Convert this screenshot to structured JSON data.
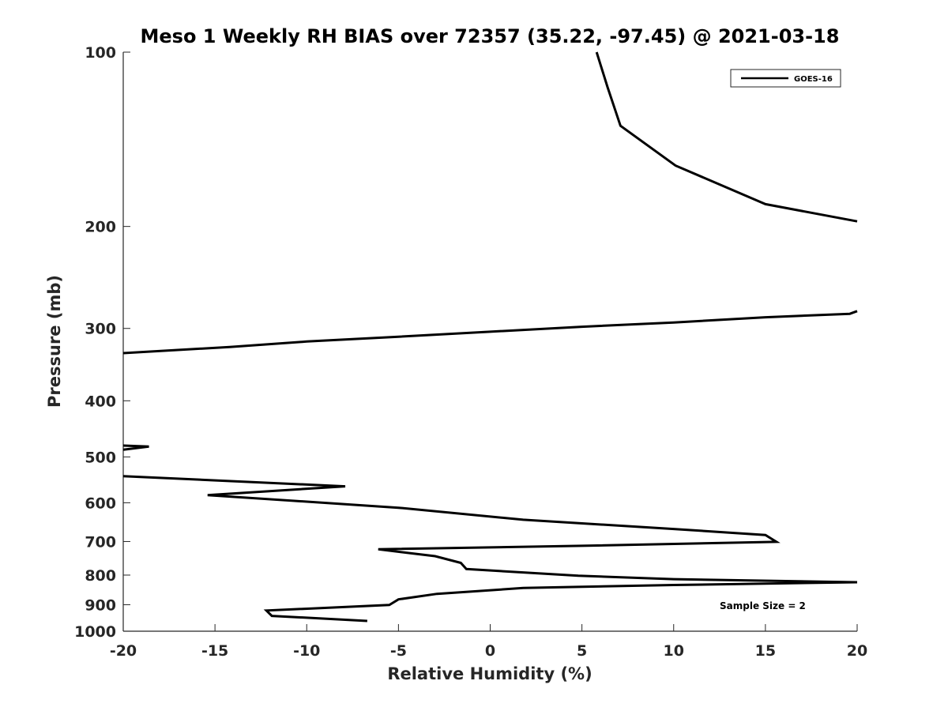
{
  "chart_data": {
    "type": "line",
    "title": "Meso 1 Weekly RH BIAS over 72357 (35.22, -97.45) @ 2021-03-18",
    "xlabel": "Relative Humidity (%)",
    "ylabel": "Pressure (mb)",
    "xlim": [
      -20,
      20
    ],
    "ylim": [
      1000,
      100
    ],
    "yscale": "log",
    "y_reversed": true,
    "grid": false,
    "legend_position": "top-right",
    "x_ticks": [
      -20,
      -15,
      -10,
      -5,
      0,
      5,
      10,
      15,
      20
    ],
    "x_tick_labels": [
      "-20",
      "-15",
      "-10",
      "-5",
      "0",
      "5",
      "10",
      "15",
      "20"
    ],
    "y_ticks": [
      100,
      200,
      300,
      400,
      500,
      600,
      700,
      800,
      900,
      1000
    ],
    "y_tick_labels": [
      "100",
      "200",
      "300",
      "400",
      "500",
      "600",
      "700",
      "800",
      "900",
      "1000"
    ],
    "annotation": "Sample Size = 2",
    "series": [
      {
        "name": "GOES-16",
        "color": "#000000",
        "segments": [
          [
            [
              5.8,
              100
            ],
            [
              6.4,
              115
            ],
            [
              7.1,
              134
            ],
            [
              10.1,
              157
            ],
            [
              15.0,
              183
            ],
            [
              20.0,
              196
            ]
          ],
          [
            [
              20.0,
              280
            ],
            [
              19.6,
              283
            ],
            [
              15.0,
              287
            ],
            [
              10.0,
              293
            ],
            [
              5.0,
              298
            ],
            [
              0.0,
              304
            ],
            [
              -5.0,
              310
            ],
            [
              -10.0,
              316
            ],
            [
              -14.2,
              323
            ],
            [
              -20.0,
              331
            ]
          ],
          [
            [
              -20.0,
              478
            ],
            [
              -18.6,
              480
            ],
            [
              -20.0,
              486
            ]
          ],
          [
            [
              -20.0,
              540
            ],
            [
              -7.9,
              562
            ],
            [
              -15.4,
              582
            ],
            [
              -5.0,
              612
            ],
            [
              1.8,
              642
            ],
            [
              10.0,
              666
            ],
            [
              15.0,
              682
            ],
            [
              15.6,
              701
            ],
            [
              5.0,
              712
            ],
            [
              -6.1,
              722
            ],
            [
              -3.0,
              742
            ],
            [
              -1.6,
              762
            ],
            [
              -1.3,
              781
            ],
            [
              4.8,
              802
            ],
            [
              10.0,
              813
            ],
            [
              20.0,
              823
            ],
            [
              10.0,
              832
            ],
            [
              1.8,
              842
            ],
            [
              -2.9,
              862
            ],
            [
              -5.0,
              881
            ],
            [
              -5.5,
              901
            ],
            [
              -12.2,
              921
            ],
            [
              -11.9,
              941
            ],
            [
              -6.7,
              960
            ]
          ]
        ]
      }
    ]
  }
}
